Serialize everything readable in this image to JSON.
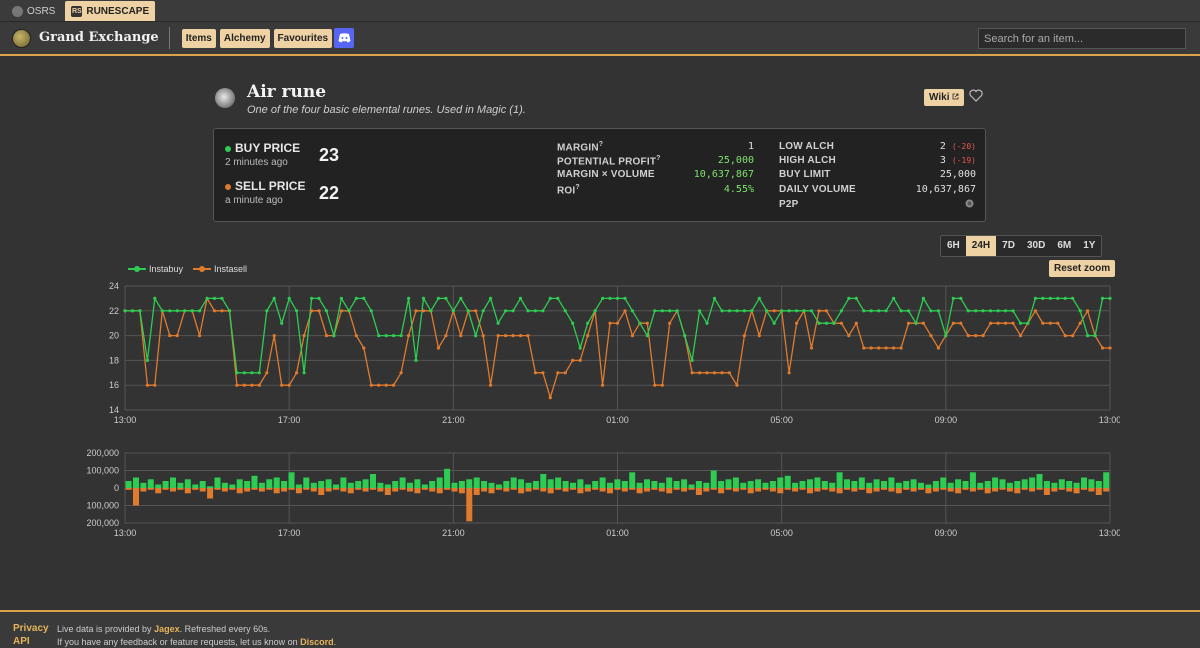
{
  "gamebar": {
    "tabs": [
      {
        "label": "OSRS"
      },
      {
        "label": "RUNESCAPE"
      }
    ]
  },
  "header": {
    "brand": "Grand Exchange",
    "nav": [
      {
        "label": "Items"
      },
      {
        "label": "Alchemy"
      },
      {
        "label": "Favourites"
      }
    ],
    "search_placeholder": "Search for an item..."
  },
  "item": {
    "name": "Air rune",
    "description": "One of the four basic elemental runes. Used in Magic (1).",
    "wiki_label": "Wiki"
  },
  "prices": {
    "buy_label": "BUY PRICE",
    "buy_time": "2 minutes ago",
    "buy_value": "23",
    "sell_label": "SELL PRICE",
    "sell_time": "a minute ago",
    "sell_value": "22"
  },
  "stats_left": [
    {
      "label": "MARGIN",
      "value": "1"
    },
    {
      "label": "POTENTIAL PROFIT",
      "value": "25,000"
    },
    {
      "label": "MARGIN × VOLUME",
      "value": "10,637,867"
    },
    {
      "label": "ROI",
      "value": "4.55%"
    }
  ],
  "stats_right": [
    {
      "label": "LOW ALCH",
      "value": "2",
      "delta": "(-20)"
    },
    {
      "label": "HIGH ALCH",
      "value": "3",
      "delta": "(-19)"
    },
    {
      "label": "BUY LIMIT",
      "value": "25,000"
    },
    {
      "label": "DAILY VOLUME",
      "value": "10,637,867"
    },
    {
      "label": "P2P",
      "value": ""
    }
  ],
  "ranges": [
    "6H",
    "24H",
    "7D",
    "30D",
    "6M",
    "1Y"
  ],
  "active_range": "24H",
  "reset_label": "Reset zoom",
  "colors": {
    "buy": "#2ecc52",
    "sell": "#e07b2e",
    "accent": "#efd2a3"
  },
  "chart_data": [
    {
      "type": "line",
      "legend": [
        "Instabuy",
        "Instasell"
      ],
      "legend_position": "top-left",
      "ylim": [
        14,
        24
      ],
      "yticks": [
        "14",
        "16",
        "18",
        "20",
        "22",
        "24"
      ],
      "xticks": [
        "13:00",
        "17:00",
        "21:00",
        "01:00",
        "05:00",
        "09:00",
        "13:00"
      ],
      "grid": true,
      "series": [
        {
          "name": "Instabuy",
          "values": [
            22,
            22,
            22,
            18,
            23,
            22,
            22,
            22,
            22,
            22,
            22,
            23,
            23,
            23,
            22,
            17,
            17,
            17,
            17,
            22,
            23,
            21,
            23,
            22,
            17,
            23,
            23,
            22,
            20,
            23,
            22,
            23,
            23,
            22,
            20,
            20,
            20,
            20,
            23,
            18,
            23,
            22,
            23,
            23,
            22,
            23,
            22,
            20,
            22,
            23,
            21,
            22,
            22,
            23,
            22,
            22,
            22,
            23,
            23,
            22,
            21,
            19,
            21,
            22,
            23,
            23,
            23,
            23,
            22,
            21,
            20,
            22,
            22,
            22,
            22,
            20,
            18,
            22,
            21,
            23,
            22,
            22,
            22,
            22,
            22,
            23,
            22,
            21,
            22,
            22,
            22,
            22,
            22,
            21,
            21,
            21,
            22,
            23,
            23,
            22,
            22,
            22,
            22,
            23,
            22,
            22,
            21,
            23,
            22,
            22,
            20,
            23,
            23,
            22,
            22,
            22,
            22,
            22,
            22,
            22,
            21,
            21,
            23,
            23,
            23,
            23,
            23,
            23,
            22,
            20,
            20,
            23,
            23
          ]
        },
        {
          "name": "Instasell",
          "values": [
            22,
            22,
            22,
            16,
            16,
            22,
            20,
            20,
            22,
            22,
            20,
            23,
            22,
            22,
            22,
            16,
            16,
            16,
            16,
            17,
            20,
            16,
            16,
            17,
            20,
            22,
            22,
            20,
            20,
            22,
            22,
            20,
            19,
            16,
            16,
            16,
            16,
            17,
            20,
            22,
            22,
            22,
            19,
            20,
            22,
            20,
            22,
            22,
            20,
            16,
            20,
            20,
            20,
            20,
            20,
            17,
            17,
            15,
            17,
            17,
            18,
            18,
            20,
            22,
            16,
            21,
            21,
            22,
            20,
            21,
            21,
            16,
            16,
            21,
            22,
            20,
            17,
            17,
            17,
            17,
            17,
            17,
            16,
            20,
            22,
            20,
            22,
            22,
            22,
            17,
            21,
            22,
            19,
            22,
            22,
            21,
            21,
            20,
            21,
            19,
            19,
            19,
            19,
            19,
            19,
            21,
            21,
            21,
            20,
            19,
            20,
            21,
            21,
            20,
            20,
            20,
            21,
            21,
            21,
            21,
            20,
            21,
            22,
            21,
            21,
            21,
            20,
            20,
            21,
            22,
            20,
            19,
            19
          ]
        }
      ]
    },
    {
      "type": "bar",
      "ylim": [
        -200000,
        200000
      ],
      "yticks": [
        "200,000",
        "100,000",
        "0",
        "100,000",
        "200,000"
      ],
      "xticks": [
        "13:00",
        "17:00",
        "21:00",
        "01:00",
        "05:00",
        "09:00",
        "13:00"
      ],
      "grid": true,
      "series": [
        {
          "name": "Instabuy",
          "values": [
            40000,
            60000,
            30000,
            50000,
            20000,
            40000,
            60000,
            30000,
            50000,
            20000,
            40000,
            10000,
            60000,
            30000,
            20000,
            50000,
            40000,
            70000,
            30000,
            50000,
            60000,
            40000,
            90000,
            20000,
            60000,
            30000,
            40000,
            50000,
            20000,
            60000,
            30000,
            40000,
            50000,
            80000,
            30000,
            20000,
            40000,
            60000,
            30000,
            50000,
            20000,
            40000,
            60000,
            110000,
            30000,
            40000,
            50000,
            60000,
            40000,
            30000,
            20000,
            40000,
            60000,
            50000,
            30000,
            40000,
            80000,
            50000,
            60000,
            40000,
            30000,
            50000,
            20000,
            40000,
            60000,
            30000,
            50000,
            40000,
            90000,
            30000,
            50000,
            40000,
            30000,
            60000,
            40000,
            50000,
            20000,
            40000,
            30000,
            100000,
            40000,
            50000,
            60000,
            30000,
            40000,
            50000,
            30000,
            40000,
            60000,
            70000,
            30000,
            40000,
            50000,
            60000,
            40000,
            30000,
            90000,
            50000,
            40000,
            60000,
            30000,
            50000,
            40000,
            60000,
            30000,
            40000,
            50000,
            30000,
            20000,
            40000,
            60000,
            30000,
            50000,
            40000,
            90000,
            30000,
            40000,
            60000,
            50000,
            30000,
            40000,
            50000,
            60000,
            80000,
            40000,
            30000,
            50000,
            40000,
            30000,
            60000,
            50000,
            40000,
            90000
          ]
        },
        {
          "name": "Instasell",
          "values": [
            -10000,
            -100000,
            -20000,
            -10000,
            -30000,
            -10000,
            -20000,
            -10000,
            -30000,
            -10000,
            -20000,
            -60000,
            -10000,
            -20000,
            -10000,
            -30000,
            -20000,
            -10000,
            -20000,
            -10000,
            -30000,
            -20000,
            -10000,
            -30000,
            -10000,
            -20000,
            -40000,
            -20000,
            -10000,
            -20000,
            -30000,
            -10000,
            -20000,
            -10000,
            -20000,
            -40000,
            -20000,
            -10000,
            -20000,
            -30000,
            -10000,
            -20000,
            -30000,
            -10000,
            -20000,
            -30000,
            -190000,
            -40000,
            -20000,
            -30000,
            -10000,
            -20000,
            -10000,
            -30000,
            -20000,
            -10000,
            -20000,
            -30000,
            -10000,
            -20000,
            -10000,
            -30000,
            -20000,
            -10000,
            -20000,
            -30000,
            -10000,
            -20000,
            -10000,
            -30000,
            -20000,
            -10000,
            -20000,
            -30000,
            -10000,
            -20000,
            -10000,
            -40000,
            -20000,
            -10000,
            -30000,
            -10000,
            -20000,
            -10000,
            -30000,
            -20000,
            -10000,
            -20000,
            -30000,
            -10000,
            -20000,
            -10000,
            -30000,
            -20000,
            -10000,
            -20000,
            -30000,
            -10000,
            -20000,
            -10000,
            -30000,
            -20000,
            -10000,
            -20000,
            -30000,
            -10000,
            -20000,
            -10000,
            -30000,
            -20000,
            -10000,
            -20000,
            -30000,
            -10000,
            -20000,
            -10000,
            -30000,
            -20000,
            -10000,
            -20000,
            -30000,
            -10000,
            -20000,
            -10000,
            -40000,
            -20000,
            -10000,
            -20000,
            -30000,
            -10000,
            -20000,
            -40000,
            -20000
          ]
        }
      ]
    }
  ],
  "footer": {
    "privacy": "Privacy",
    "api": "API",
    "line1_pre": "Live data is provided by ",
    "line1_link": "Jagex",
    "line1_post": ". Refreshed every 60s.",
    "line2_pre": "If you have any feedback or feature requests, let us know on ",
    "line2_link": "Discord",
    "line2_post": "."
  }
}
